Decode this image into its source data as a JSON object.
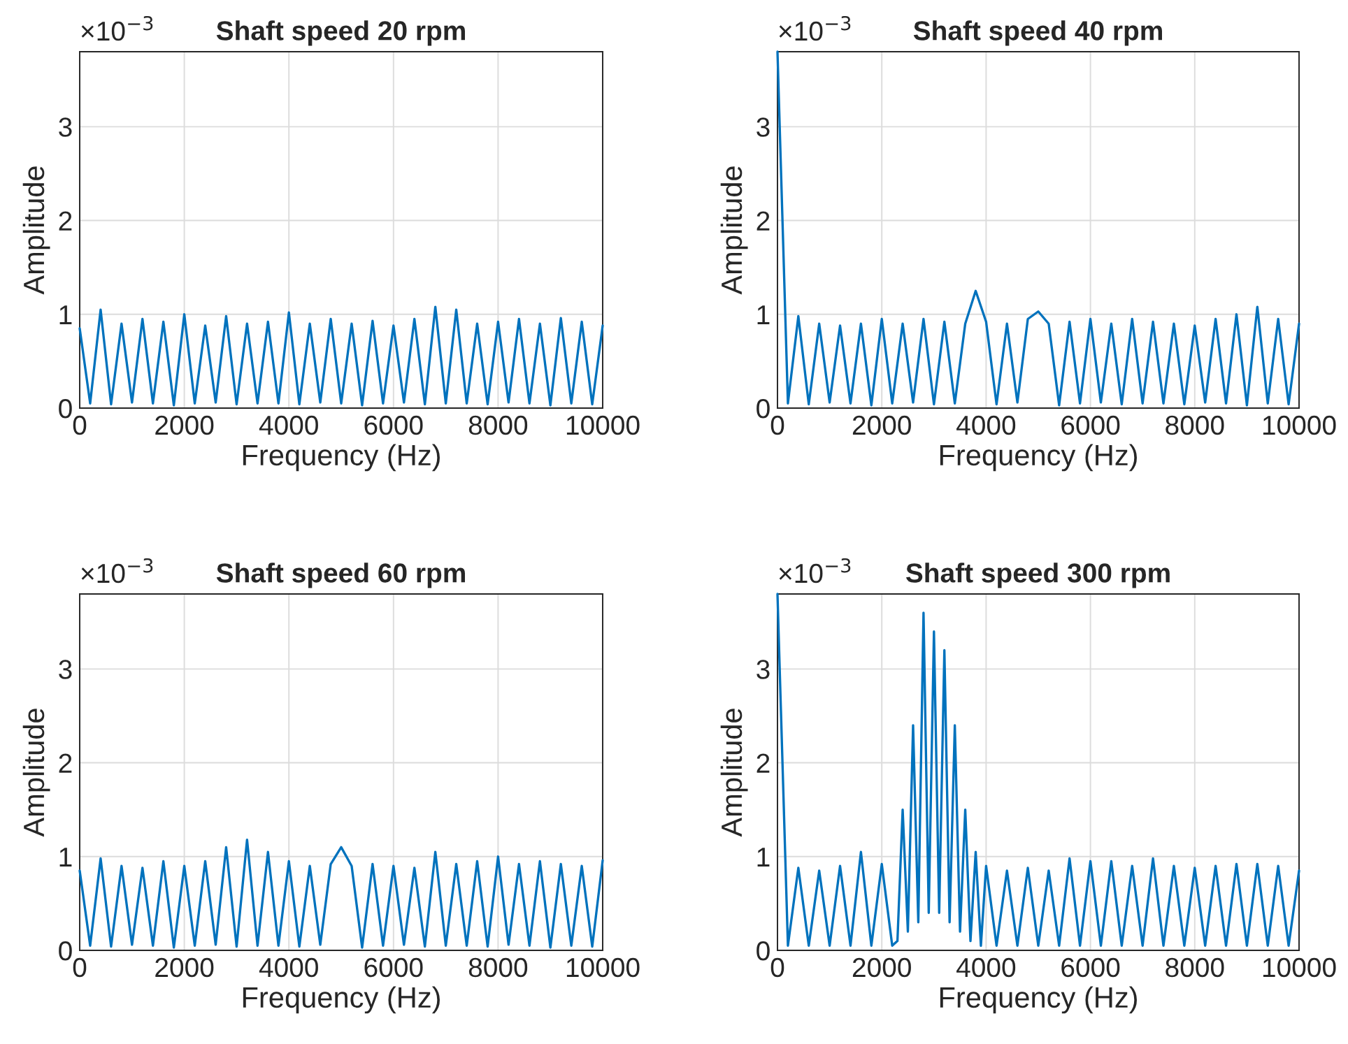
{
  "chart_data": [
    {
      "type": "line",
      "title": "Shaft speed 20 rpm",
      "xlabel": "Frequency (Hz)",
      "ylabel": "Amplitude",
      "annotations": [
        "×10$^{−3}$"
      ],
      "xlim": [
        0,
        10000
      ],
      "xticks": [
        0,
        2000,
        4000,
        6000,
        8000,
        10000
      ],
      "ylim": [
        0,
        3.8
      ],
      "yticks": [
        0,
        1,
        2,
        3
      ],
      "grid": true,
      "legend": false,
      "x": [
        0,
        200,
        400,
        600,
        800,
        1000,
        1200,
        1400,
        1600,
        1800,
        2000,
        2200,
        2400,
        2600,
        2800,
        3000,
        3200,
        3400,
        3600,
        3800,
        4000,
        4200,
        4400,
        4600,
        4800,
        5000,
        5200,
        5400,
        5600,
        5800,
        6000,
        6200,
        6400,
        6600,
        6800,
        7000,
        7200,
        7400,
        7600,
        7800,
        8000,
        8200,
        8400,
        8600,
        8800,
        9000,
        9200,
        9400,
        9600,
        9800,
        10000
      ],
      "series": [
        {
          "color": "#0072bd",
          "values": [
            0.85,
            0.05,
            1.05,
            0.04,
            0.9,
            0.06,
            0.95,
            0.05,
            0.92,
            0.03,
            1.0,
            0.05,
            0.88,
            0.06,
            0.98,
            0.04,
            0.9,
            0.05,
            0.92,
            0.05,
            1.02,
            0.04,
            0.9,
            0.06,
            0.95,
            0.05,
            0.9,
            0.03,
            0.93,
            0.05,
            0.88,
            0.06,
            0.95,
            0.04,
            1.08,
            0.05,
            1.05,
            0.05,
            0.9,
            0.04,
            0.92,
            0.06,
            0.95,
            0.05,
            0.9,
            0.03,
            0.96,
            0.05,
            0.92,
            0.04,
            0.88
          ]
        }
      ]
    },
    {
      "type": "line",
      "title": "Shaft speed 40 rpm",
      "xlabel": "Frequency (Hz)",
      "ylabel": "Amplitude",
      "annotations": [
        "×10$^{−3}$"
      ],
      "xlim": [
        0,
        10000
      ],
      "xticks": [
        0,
        2000,
        4000,
        6000,
        8000,
        10000
      ],
      "ylim": [
        0,
        3.8
      ],
      "yticks": [
        0,
        1,
        2,
        3
      ],
      "grid": true,
      "legend": false,
      "x": [
        0,
        200,
        400,
        600,
        800,
        1000,
        1200,
        1400,
        1600,
        1800,
        2000,
        2200,
        2400,
        2600,
        2800,
        3000,
        3200,
        3400,
        3600,
        3800,
        4000,
        4200,
        4400,
        4600,
        4800,
        5000,
        5200,
        5400,
        5600,
        5800,
        6000,
        6200,
        6400,
        6600,
        6800,
        7000,
        7200,
        7400,
        7600,
        7800,
        8000,
        8200,
        8400,
        8600,
        8800,
        9000,
        9200,
        9400,
        9600,
        9800,
        10000
      ],
      "series": [
        {
          "color": "#0072bd",
          "values": [
            3.8,
            0.05,
            0.98,
            0.04,
            0.9,
            0.06,
            0.88,
            0.05,
            0.9,
            0.03,
            0.95,
            0.05,
            0.9,
            0.06,
            0.95,
            0.04,
            0.92,
            0.05,
            0.9,
            1.25,
            0.92,
            0.04,
            0.9,
            0.06,
            0.95,
            1.03,
            0.9,
            0.03,
            0.92,
            0.05,
            0.95,
            0.06,
            0.9,
            0.04,
            0.95,
            0.05,
            0.92,
            0.05,
            0.9,
            0.04,
            0.88,
            0.06,
            0.95,
            0.05,
            1.0,
            0.03,
            1.08,
            0.05,
            0.95,
            0.04,
            0.9
          ]
        }
      ]
    },
    {
      "type": "line",
      "title": "Shaft speed 60 rpm",
      "xlabel": "Frequency (Hz)",
      "ylabel": "Amplitude",
      "annotations": [
        "×10$^{−3}$"
      ],
      "xlim": [
        0,
        10000
      ],
      "xticks": [
        0,
        2000,
        4000,
        6000,
        8000,
        10000
      ],
      "ylim": [
        0,
        3.8
      ],
      "yticks": [
        0,
        1,
        2,
        3
      ],
      "grid": true,
      "legend": false,
      "x": [
        0,
        200,
        400,
        600,
        800,
        1000,
        1200,
        1400,
        1600,
        1800,
        2000,
        2200,
        2400,
        2600,
        2800,
        3000,
        3200,
        3400,
        3600,
        3800,
        4000,
        4200,
        4400,
        4600,
        4800,
        5000,
        5200,
        5400,
        5600,
        5800,
        6000,
        6200,
        6400,
        6600,
        6800,
        7000,
        7200,
        7400,
        7600,
        7800,
        8000,
        8200,
        8400,
        8600,
        8800,
        9000,
        9200,
        9400,
        9600,
        9800,
        10000
      ],
      "series": [
        {
          "color": "#0072bd",
          "values": [
            0.85,
            0.05,
            0.98,
            0.04,
            0.9,
            0.06,
            0.88,
            0.05,
            0.95,
            0.03,
            0.9,
            0.05,
            0.95,
            0.06,
            1.1,
            0.04,
            1.18,
            0.05,
            1.05,
            0.05,
            0.95,
            0.04,
            0.9,
            0.06,
            0.92,
            1.1,
            0.9,
            0.03,
            0.92,
            0.05,
            0.9,
            0.06,
            0.88,
            0.04,
            1.05,
            0.05,
            0.92,
            0.05,
            0.95,
            0.04,
            1.0,
            0.06,
            0.92,
            0.05,
            0.95,
            0.03,
            0.92,
            0.05,
            0.9,
            0.04,
            0.96
          ]
        }
      ]
    },
    {
      "type": "line",
      "title": "Shaft speed 300 rpm",
      "xlabel": "Frequency (Hz)",
      "ylabel": "Amplitude",
      "annotations": [
        "×10$^{−3}$"
      ],
      "xlim": [
        0,
        10000
      ],
      "xticks": [
        0,
        2000,
        4000,
        6000,
        8000,
        10000
      ],
      "ylim": [
        0,
        3.8
      ],
      "yticks": [
        0,
        1,
        2,
        3
      ],
      "grid": true,
      "legend": false,
      "x": [
        0,
        200,
        400,
        600,
        800,
        1000,
        1200,
        1400,
        1600,
        1800,
        2000,
        2200,
        2300,
        2400,
        2500,
        2600,
        2700,
        2800,
        2900,
        3000,
        3100,
        3200,
        3300,
        3400,
        3500,
        3600,
        3700,
        3800,
        3900,
        4000,
        4200,
        4400,
        4600,
        4800,
        5000,
        5200,
        5400,
        5600,
        5800,
        6000,
        6200,
        6400,
        6600,
        6800,
        7000,
        7200,
        7400,
        7600,
        7800,
        8000,
        8200,
        8400,
        8600,
        8800,
        9000,
        9200,
        9400,
        9600,
        9800,
        10000
      ],
      "series": [
        {
          "color": "#0072bd",
          "values": [
            3.8,
            0.05,
            0.88,
            0.05,
            0.85,
            0.05,
            0.9,
            0.05,
            1.05,
            0.05,
            0.92,
            0.05,
            0.1,
            1.5,
            0.2,
            2.4,
            0.3,
            3.6,
            0.4,
            3.4,
            0.4,
            3.2,
            0.3,
            2.4,
            0.2,
            1.5,
            0.1,
            1.05,
            0.05,
            0.9,
            0.05,
            0.85,
            0.05,
            0.88,
            0.05,
            0.85,
            0.05,
            0.98,
            0.05,
            0.95,
            0.05,
            0.95,
            0.05,
            0.9,
            0.05,
            0.98,
            0.05,
            0.9,
            0.05,
            0.88,
            0.05,
            0.9,
            0.05,
            0.92,
            0.05,
            0.92,
            0.05,
            0.9,
            0.05,
            0.85
          ]
        }
      ]
    }
  ]
}
